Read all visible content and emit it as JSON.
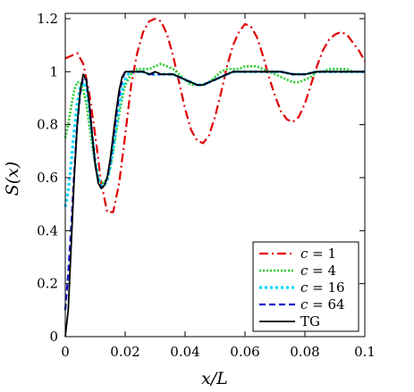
{
  "chart_data": {
    "type": "line",
    "title": "",
    "xlabel": "x/L",
    "ylabel": "S(x)",
    "xlim": [
      0,
      0.1
    ],
    "ylim": [
      0,
      1.22
    ],
    "x_ticks": [
      0,
      0.02,
      0.04,
      0.06,
      0.08,
      0.1
    ],
    "x_tick_labels": [
      "0",
      "0.02",
      "0.04",
      "0.06",
      "0.08",
      "0.1"
    ],
    "y_ticks": [
      0,
      0.2,
      0.4,
      0.6,
      0.8,
      1,
      1.2
    ],
    "y_tick_labels": [
      "0",
      "0.2",
      "0.4",
      "0.6",
      "0.8",
      "1",
      "1.2"
    ],
    "grid": false,
    "legend_position": "bottom-right",
    "series": [
      {
        "name": "c = 1",
        "label_var": "c",
        "label_val": "= 1",
        "color": "#e00000",
        "dash": "dash-dot",
        "x": [
          0,
          0.002,
          0.004,
          0.006,
          0.008,
          0.01,
          0.012,
          0.014,
          0.016,
          0.018,
          0.02,
          0.022,
          0.024,
          0.026,
          0.028,
          0.03,
          0.032,
          0.034,
          0.036,
          0.038,
          0.04,
          0.042,
          0.044,
          0.046,
          0.048,
          0.05,
          0.052,
          0.054,
          0.056,
          0.058,
          0.06,
          0.062,
          0.064,
          0.066,
          0.068,
          0.07,
          0.072,
          0.074,
          0.076,
          0.078,
          0.08,
          0.082,
          0.084,
          0.086,
          0.088,
          0.09,
          0.092,
          0.094,
          0.096,
          0.098,
          0.1
        ],
        "y": [
          1.05,
          1.06,
          1.07,
          1.03,
          0.92,
          0.76,
          0.58,
          0.47,
          0.47,
          0.58,
          0.76,
          0.95,
          1.07,
          1.15,
          1.19,
          1.2,
          1.19,
          1.14,
          1.06,
          0.96,
          0.86,
          0.78,
          0.74,
          0.73,
          0.76,
          0.83,
          0.92,
          1.02,
          1.1,
          1.15,
          1.18,
          1.17,
          1.13,
          1.06,
          0.98,
          0.91,
          0.85,
          0.82,
          0.81,
          0.83,
          0.88,
          0.95,
          1.02,
          1.08,
          1.12,
          1.14,
          1.15,
          1.14,
          1.11,
          1.08,
          1.04
        ]
      },
      {
        "name": "c = 4",
        "label_var": "c",
        "label_val": "= 4",
        "color": "#22cc22",
        "dash": "dotted",
        "x": [
          0,
          0.001,
          0.002,
          0.003,
          0.004,
          0.005,
          0.006,
          0.007,
          0.008,
          0.009,
          0.01,
          0.011,
          0.012,
          0.013,
          0.014,
          0.015,
          0.016,
          0.017,
          0.018,
          0.019,
          0.02,
          0.022,
          0.024,
          0.026,
          0.028,
          0.03,
          0.032,
          0.034,
          0.036,
          0.038,
          0.04,
          0.042,
          0.044,
          0.046,
          0.048,
          0.05,
          0.052,
          0.054,
          0.056,
          0.058,
          0.06,
          0.062,
          0.064,
          0.066,
          0.068,
          0.07,
          0.072,
          0.074,
          0.076,
          0.078,
          0.08,
          0.082,
          0.084,
          0.086,
          0.088,
          0.09,
          0.092,
          0.094,
          0.096,
          0.098,
          0.1
        ],
        "y": [
          0.75,
          0.8,
          0.87,
          0.93,
          0.96,
          0.96,
          0.93,
          0.88,
          0.8,
          0.72,
          0.65,
          0.6,
          0.58,
          0.58,
          0.6,
          0.64,
          0.7,
          0.77,
          0.84,
          0.9,
          0.95,
          0.99,
          1.01,
          1.01,
          1.01,
          1.02,
          1.03,
          1.02,
          1.01,
          0.99,
          0.97,
          0.95,
          0.95,
          0.95,
          0.96,
          0.98,
          1.0,
          1.01,
          1.01,
          1.01,
          1.02,
          1.02,
          1.02,
          1.01,
          1.0,
          0.99,
          0.98,
          0.97,
          0.96,
          0.96,
          0.97,
          0.98,
          1.0,
          1.0,
          1.01,
          1.01,
          1.01,
          1.01,
          1.0,
          1.0,
          1.0
        ]
      },
      {
        "name": "c = 16",
        "label_var": "c",
        "label_val": "= 16",
        "color": "#00d8ff",
        "dash": "dotted-thick",
        "x": [
          0,
          0.001,
          0.002,
          0.003,
          0.004,
          0.005,
          0.006,
          0.007,
          0.008,
          0.009,
          0.01,
          0.011,
          0.012,
          0.013,
          0.014,
          0.015,
          0.016,
          0.017,
          0.018,
          0.019,
          0.02,
          0.021,
          0.022,
          0.024,
          0.026,
          0.028,
          0.03,
          0.032,
          0.034,
          0.036,
          0.038,
          0.04,
          0.042,
          0.044,
          0.046,
          0.048,
          0.05,
          0.052,
          0.054,
          0.056,
          0.06,
          0.064,
          0.068,
          0.072,
          0.076,
          0.08,
          0.084,
          0.088,
          0.092,
          0.096,
          0.1
        ],
        "y": [
          0.49,
          0.55,
          0.66,
          0.78,
          0.88,
          0.94,
          0.96,
          0.94,
          0.86,
          0.76,
          0.66,
          0.6,
          0.57,
          0.57,
          0.59,
          0.64,
          0.71,
          0.79,
          0.87,
          0.93,
          0.97,
          0.99,
          1.0,
          1.0,
          1.0,
          0.99,
          0.99,
          0.99,
          0.99,
          0.99,
          0.98,
          0.97,
          0.96,
          0.95,
          0.95,
          0.96,
          0.97,
          0.98,
          0.99,
          1.0,
          1.0,
          1.0,
          1.0,
          1.0,
          0.99,
          0.99,
          1.0,
          1.0,
          1.0,
          1.0,
          1.0
        ]
      },
      {
        "name": "c = 64",
        "label_var": "c",
        "label_val": "= 64",
        "color": "#1010cc",
        "dash": "dashed",
        "x": [
          0,
          0.001,
          0.002,
          0.003,
          0.004,
          0.005,
          0.006,
          0.007,
          0.008,
          0.009,
          0.01,
          0.011,
          0.012,
          0.013,
          0.014,
          0.015,
          0.016,
          0.017,
          0.018,
          0.019,
          0.02,
          0.021,
          0.022,
          0.024,
          0.026,
          0.028,
          0.03,
          0.032,
          0.034,
          0.036,
          0.038,
          0.04,
          0.042,
          0.044,
          0.046,
          0.048,
          0.05,
          0.052,
          0.054,
          0.056,
          0.06,
          0.064,
          0.068,
          0.072,
          0.076,
          0.08,
          0.084,
          0.088,
          0.092,
          0.096,
          0.1
        ],
        "y": [
          0.1,
          0.24,
          0.42,
          0.62,
          0.8,
          0.92,
          0.98,
          0.97,
          0.88,
          0.76,
          0.65,
          0.59,
          0.56,
          0.57,
          0.6,
          0.66,
          0.74,
          0.83,
          0.91,
          0.97,
          1.0,
          1.0,
          1.0,
          1.0,
          1.0,
          0.99,
          0.99,
          0.99,
          0.99,
          0.99,
          0.98,
          0.97,
          0.96,
          0.95,
          0.95,
          0.96,
          0.97,
          0.98,
          0.99,
          1.0,
          1.0,
          1.0,
          1.0,
          1.0,
          0.99,
          0.99,
          1.0,
          1.0,
          1.0,
          1.0,
          1.0
        ]
      },
      {
        "name": "TG",
        "label_var": "",
        "label_val": "TG",
        "color": "#000000",
        "dash": "solid",
        "x": [
          0,
          0.001,
          0.002,
          0.003,
          0.004,
          0.005,
          0.006,
          0.007,
          0.008,
          0.009,
          0.01,
          0.011,
          0.012,
          0.013,
          0.014,
          0.015,
          0.016,
          0.017,
          0.018,
          0.019,
          0.02,
          0.021,
          0.022,
          0.024,
          0.026,
          0.028,
          0.03,
          0.032,
          0.034,
          0.036,
          0.038,
          0.04,
          0.042,
          0.044,
          0.046,
          0.048,
          0.05,
          0.052,
          0.054,
          0.056,
          0.06,
          0.064,
          0.068,
          0.072,
          0.076,
          0.08,
          0.084,
          0.088,
          0.092,
          0.096,
          0.1
        ],
        "y": [
          0.0,
          0.1,
          0.35,
          0.6,
          0.8,
          0.93,
          0.99,
          0.97,
          0.88,
          0.76,
          0.65,
          0.58,
          0.56,
          0.57,
          0.6,
          0.67,
          0.76,
          0.85,
          0.93,
          0.98,
          1.0,
          1.0,
          1.0,
          1.0,
          1.0,
          0.99,
          1.0,
          0.99,
          0.99,
          0.99,
          0.98,
          0.97,
          0.96,
          0.95,
          0.95,
          0.96,
          0.97,
          0.98,
          0.99,
          1.0,
          1.0,
          1.0,
          1.0,
          1.0,
          0.99,
          0.99,
          1.0,
          1.0,
          1.0,
          1.0,
          1.0
        ]
      }
    ]
  }
}
